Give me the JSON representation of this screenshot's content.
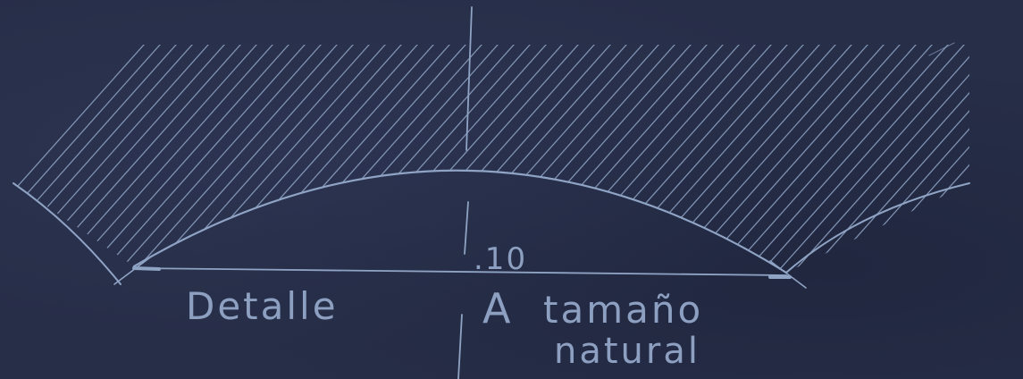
{
  "drawing": {
    "dimension_value": ".10",
    "label_left": "Detalle",
    "label_letter": "A",
    "label_scale_line1": "tamaño",
    "label_scale_line2": "natural"
  },
  "colors": {
    "paper": "#272e48",
    "ink": "#8fa3c4"
  }
}
